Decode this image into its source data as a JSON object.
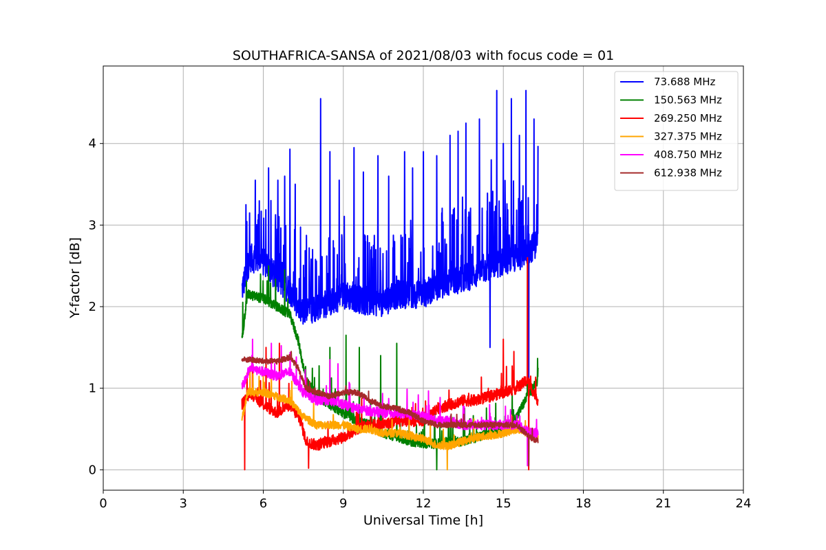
{
  "chart_data": {
    "type": "line",
    "title": "SOUTHAFRICA-SANSA of 2021/08/03 with focus code = 01",
    "xlabel": "Universal Time [h]",
    "ylabel": "Y-factor [dB]",
    "xlim": [
      0,
      24
    ],
    "ylim": [
      -0.25,
      4.95
    ],
    "xticks": [
      0,
      3,
      6,
      9,
      12,
      15,
      18,
      21,
      24
    ],
    "xtick_labels": [
      "0",
      "3",
      "6",
      "9",
      "12",
      "15",
      "18",
      "21",
      "24"
    ],
    "yticks": [
      0,
      1,
      2,
      3,
      4
    ],
    "ytick_labels": [
      "0",
      "1",
      "2",
      "3",
      "4"
    ],
    "grid": true,
    "legend_position": "top-right",
    "series": [
      {
        "name": " 73.688 MHz",
        "color": "#0000ff",
        "base": [
          [
            5.2,
            2.2
          ],
          [
            5.5,
            2.6
          ],
          [
            6.0,
            2.55
          ],
          [
            6.5,
            2.35
          ],
          [
            7.0,
            2.2
          ],
          [
            7.5,
            1.9
          ],
          [
            8.0,
            2.0
          ],
          [
            8.5,
            2.05
          ],
          [
            9.0,
            2.15
          ],
          [
            9.5,
            2.1
          ],
          [
            10.0,
            2.05
          ],
          [
            10.5,
            2.05
          ],
          [
            11.0,
            2.15
          ],
          [
            11.5,
            2.15
          ],
          [
            12.0,
            2.15
          ],
          [
            12.5,
            2.25
          ],
          [
            13.0,
            2.3
          ],
          [
            13.5,
            2.35
          ],
          [
            14.0,
            2.4
          ],
          [
            14.5,
            2.5
          ],
          [
            15.0,
            2.55
          ],
          [
            15.5,
            2.6
          ],
          [
            16.0,
            2.7
          ],
          [
            16.3,
            2.8
          ]
        ],
        "noise": 0.35,
        "spike_prob": 0.16,
        "spike_amp": 0.9,
        "spikes": [
          [
            5.35,
            3.25
          ],
          [
            5.7,
            3.55
          ],
          [
            6.2,
            3.7
          ],
          [
            6.55,
            3.55
          ],
          [
            6.8,
            3.6
          ],
          [
            7.0,
            3.93
          ],
          [
            7.2,
            3.5
          ],
          [
            7.85,
            2.7
          ],
          [
            8.15,
            4.55
          ],
          [
            8.5,
            3.9
          ],
          [
            8.85,
            3.55
          ],
          [
            9.4,
            3.95
          ],
          [
            9.75,
            3.65
          ],
          [
            10.3,
            3.85
          ],
          [
            10.7,
            3.6
          ],
          [
            11.3,
            3.9
          ],
          [
            11.6,
            3.7
          ],
          [
            12.0,
            3.9
          ],
          [
            12.5,
            3.85
          ],
          [
            13.0,
            4.1
          ],
          [
            13.3,
            4.15
          ],
          [
            13.6,
            4.25
          ],
          [
            14.1,
            4.3
          ],
          [
            14.55,
            3.8
          ],
          [
            14.75,
            4.65
          ],
          [
            15.0,
            4.0
          ],
          [
            15.3,
            4.55
          ],
          [
            15.6,
            4.1
          ],
          [
            15.85,
            4.65
          ],
          [
            15.95,
            4.75
          ],
          [
            16.15,
            4.3
          ],
          [
            16.3,
            3.97
          ]
        ],
        "dips": [
          [
            14.5,
            1.5
          ],
          [
            15.95,
            0.05
          ]
        ]
      },
      {
        "name": "150.563 MHz",
        "color": "#008000",
        "base": [
          [
            5.2,
            1.6
          ],
          [
            5.4,
            2.15
          ],
          [
            6.0,
            2.1
          ],
          [
            6.5,
            2.0
          ],
          [
            7.0,
            1.9
          ],
          [
            7.3,
            1.6
          ],
          [
            7.6,
            1.1
          ],
          [
            8.0,
            0.9
          ],
          [
            8.5,
            0.8
          ],
          [
            9.0,
            0.7
          ],
          [
            9.5,
            0.6
          ],
          [
            10.0,
            0.55
          ],
          [
            10.5,
            0.45
          ],
          [
            11.0,
            0.4
          ],
          [
            11.5,
            0.35
          ],
          [
            12.0,
            0.32
          ],
          [
            12.5,
            0.32
          ],
          [
            13.0,
            0.35
          ],
          [
            13.5,
            0.35
          ],
          [
            14.0,
            0.4
          ],
          [
            14.5,
            0.45
          ],
          [
            15.0,
            0.5
          ],
          [
            15.5,
            0.65
          ],
          [
            15.9,
            0.9
          ],
          [
            16.1,
            1.0
          ],
          [
            16.3,
            1.1
          ]
        ],
        "noise": 0.12,
        "spike_prob": 0.04,
        "spike_amp": 0.4,
        "spikes": [
          [
            5.9,
            2.4
          ],
          [
            6.2,
            2.5
          ],
          [
            6.8,
            2.45
          ],
          [
            8.5,
            1.5
          ],
          [
            9.1,
            1.65
          ],
          [
            9.6,
            1.5
          ],
          [
            10.4,
            1.4
          ],
          [
            11.0,
            1.55
          ],
          [
            12.5,
            1.05
          ],
          [
            15.9,
            2.55
          ],
          [
            16.3,
            1.25
          ]
        ],
        "dips": [
          [
            12.5,
            0.0
          ]
        ]
      },
      {
        "name": "269.250 MHz",
        "color": "#ff0000",
        "base": [
          [
            5.2,
            0.8
          ],
          [
            5.5,
            0.95
          ],
          [
            6.0,
            0.8
          ],
          [
            6.5,
            0.7
          ],
          [
            7.0,
            0.8
          ],
          [
            7.4,
            0.6
          ],
          [
            7.6,
            0.35
          ],
          [
            8.0,
            0.3
          ],
          [
            8.5,
            0.35
          ],
          [
            9.0,
            0.4
          ],
          [
            9.5,
            0.5
          ],
          [
            10.0,
            0.55
          ],
          [
            10.5,
            0.55
          ],
          [
            11.0,
            0.6
          ],
          [
            11.5,
            0.6
          ],
          [
            12.0,
            0.6
          ],
          [
            12.5,
            0.75
          ],
          [
            13.0,
            0.8
          ],
          [
            13.5,
            0.85
          ],
          [
            14.0,
            0.85
          ],
          [
            14.5,
            0.9
          ],
          [
            15.0,
            0.95
          ],
          [
            15.5,
            1.0
          ],
          [
            15.9,
            1.1
          ],
          [
            16.3,
            0.85
          ]
        ],
        "noise": 0.14,
        "spike_prob": 0.03,
        "spike_amp": 0.3,
        "spikes": [
          [
            5.6,
            1.4
          ],
          [
            6.1,
            1.5
          ],
          [
            6.6,
            1.55
          ],
          [
            15.0,
            1.6
          ],
          [
            15.4,
            1.45
          ],
          [
            15.9,
            2.6
          ]
        ],
        "dips": [
          [
            5.3,
            0.0
          ],
          [
            7.7,
            0.02
          ],
          [
            15.95,
            0.0
          ]
        ]
      },
      {
        "name": "327.375 MHz",
        "color": "#ffa500",
        "base": [
          [
            5.2,
            0.6
          ],
          [
            5.4,
            0.95
          ],
          [
            6.0,
            0.95
          ],
          [
            6.5,
            0.9
          ],
          [
            7.0,
            0.85
          ],
          [
            7.5,
            0.65
          ],
          [
            8.0,
            0.55
          ],
          [
            8.5,
            0.55
          ],
          [
            9.0,
            0.55
          ],
          [
            9.5,
            0.5
          ],
          [
            10.0,
            0.5
          ],
          [
            10.5,
            0.45
          ],
          [
            11.0,
            0.45
          ],
          [
            11.5,
            0.42
          ],
          [
            12.0,
            0.38
          ],
          [
            12.5,
            0.3
          ],
          [
            13.0,
            0.3
          ],
          [
            13.5,
            0.35
          ],
          [
            14.0,
            0.4
          ],
          [
            14.5,
            0.42
          ],
          [
            15.0,
            0.45
          ],
          [
            15.5,
            0.5
          ],
          [
            16.0,
            0.45
          ],
          [
            16.3,
            0.4
          ]
        ],
        "noise": 0.1,
        "spike_prob": 0.02,
        "spike_amp": 0.25,
        "spikes": [
          [
            5.5,
            1.25
          ],
          [
            6.3,
            1.2
          ]
        ],
        "dips": [
          [
            12.9,
            0.0
          ]
        ]
      },
      {
        "name": "408.750 MHz",
        "color": "#ff00ff",
        "base": [
          [
            5.2,
            1.0
          ],
          [
            5.5,
            1.25
          ],
          [
            6.0,
            1.2
          ],
          [
            6.5,
            1.15
          ],
          [
            7.0,
            1.2
          ],
          [
            7.5,
            0.95
          ],
          [
            8.0,
            0.85
          ],
          [
            8.5,
            0.85
          ],
          [
            9.0,
            0.8
          ],
          [
            9.5,
            0.75
          ],
          [
            10.0,
            0.72
          ],
          [
            10.5,
            0.7
          ],
          [
            11.0,
            0.7
          ],
          [
            11.5,
            0.68
          ],
          [
            12.0,
            0.65
          ],
          [
            12.5,
            0.6
          ],
          [
            13.0,
            0.6
          ],
          [
            13.5,
            0.55
          ],
          [
            14.0,
            0.55
          ],
          [
            14.5,
            0.55
          ],
          [
            15.0,
            0.55
          ],
          [
            15.5,
            0.55
          ],
          [
            16.0,
            0.45
          ],
          [
            16.3,
            0.45
          ]
        ],
        "noise": 0.12,
        "spike_prob": 0.03,
        "spike_amp": 0.3,
        "spikes": [
          [
            5.6,
            1.6
          ],
          [
            6.3,
            1.55
          ],
          [
            8.5,
            1.35
          ],
          [
            8.8,
            1.3
          ]
        ],
        "dips": [
          [
            15.9,
            0.05
          ]
        ]
      },
      {
        "name": "612.938 MHz",
        "color": "#a52a2a",
        "base": [
          [
            5.2,
            1.35
          ],
          [
            5.5,
            1.35
          ],
          [
            6.0,
            1.33
          ],
          [
            6.5,
            1.33
          ],
          [
            7.0,
            1.38
          ],
          [
            7.3,
            1.25
          ],
          [
            7.6,
            1.0
          ],
          [
            8.0,
            0.95
          ],
          [
            8.5,
            0.9
          ],
          [
            9.0,
            0.95
          ],
          [
            9.5,
            0.95
          ],
          [
            10.0,
            0.85
          ],
          [
            10.5,
            0.78
          ],
          [
            11.0,
            0.75
          ],
          [
            11.5,
            0.7
          ],
          [
            12.0,
            0.6
          ],
          [
            12.5,
            0.55
          ],
          [
            13.0,
            0.55
          ],
          [
            13.5,
            0.55
          ],
          [
            14.0,
            0.55
          ],
          [
            14.5,
            0.55
          ],
          [
            15.0,
            0.55
          ],
          [
            15.5,
            0.55
          ],
          [
            16.0,
            0.4
          ],
          [
            16.3,
            0.35
          ]
        ],
        "noise": 0.07,
        "spike_prob": 0.01,
        "spike_amp": 0.15,
        "spikes": [
          [
            7.05,
            1.45
          ]
        ],
        "dips": [
          [
            15.95,
            0.05
          ]
        ]
      }
    ]
  }
}
